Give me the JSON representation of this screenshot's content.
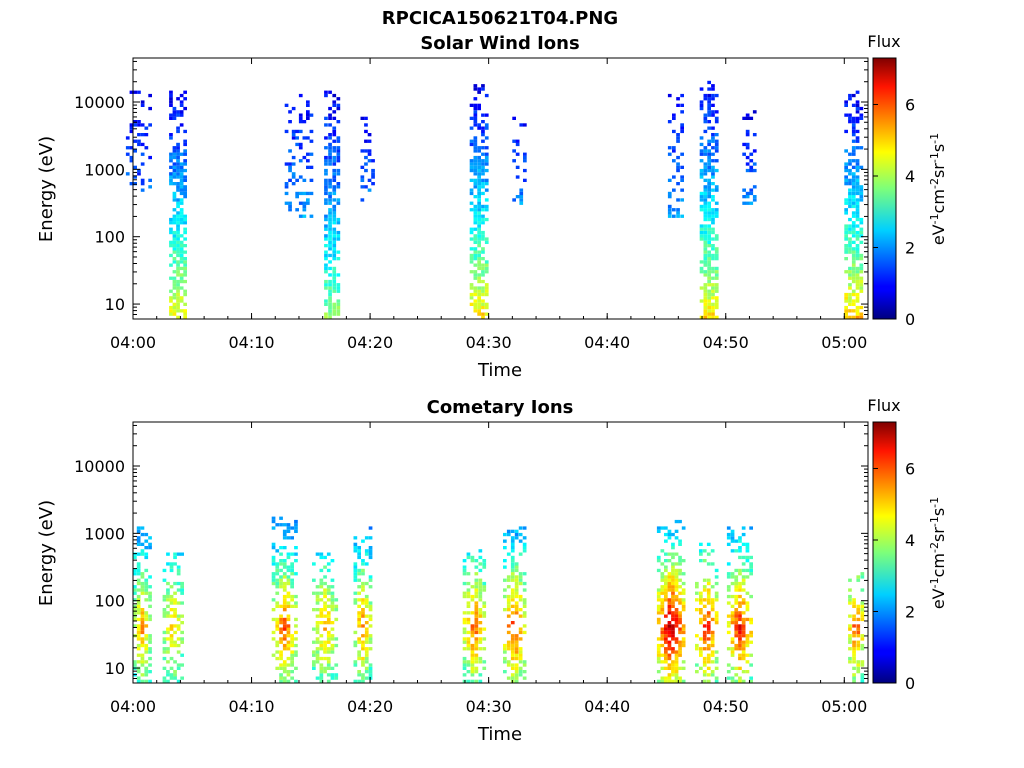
{
  "figure_title": "RPCICA150621T04.PNG",
  "chart_data": [
    {
      "type": "heatmap",
      "title": "Solar Wind Ions",
      "xlabel": "Time",
      "ylabel": "Energy (eV)",
      "yscale": "log",
      "ylim": [
        6,
        45000
      ],
      "xlim_minutes": [
        0,
        62
      ],
      "x_ticks": [
        "04:00",
        "04:10",
        "04:20",
        "04:30",
        "04:40",
        "04:50",
        "05:00"
      ],
      "x_tick_minutes": [
        0,
        10,
        20,
        30,
        40,
        50,
        60
      ],
      "y_ticks": [
        "10",
        "100",
        "1000",
        "10000"
      ],
      "y_tick_values": [
        10,
        100,
        1000,
        10000
      ],
      "colorbar": {
        "label": "Flux",
        "unit": "eV-1cm-2sr-1s-1",
        "range": [
          0,
          7.3
        ],
        "ticks": [
          "0",
          "2",
          "4",
          "6"
        ],
        "tick_values": [
          0,
          2,
          4,
          6
        ]
      },
      "bursts": [
        {
          "t": 0.5,
          "w": 2.2,
          "emin": 400,
          "emax": 14000,
          "fmin": 0.8,
          "fmax": 1.8,
          "dens": 0.35
        },
        {
          "t": 3.8,
          "w": 1.5,
          "emin": 6,
          "emax": 15000,
          "fmin": 0.8,
          "fmax": 4.8,
          "dens": 0.85
        },
        {
          "t": 14.0,
          "w": 2.4,
          "emin": 200,
          "emax": 14000,
          "fmin": 0.9,
          "fmax": 2.2,
          "dens": 0.35
        },
        {
          "t": 16.8,
          "w": 1.4,
          "emin": 6,
          "emax": 15000,
          "fmin": 0.8,
          "fmax": 4.0,
          "dens": 0.85
        },
        {
          "t": 19.8,
          "w": 1.2,
          "emin": 300,
          "emax": 6000,
          "fmin": 0.8,
          "fmax": 2.0,
          "dens": 0.35
        },
        {
          "t": 29.2,
          "w": 1.6,
          "emin": 6,
          "emax": 18000,
          "fmin": 0.8,
          "fmax": 5.0,
          "dens": 0.85
        },
        {
          "t": 32.6,
          "w": 1.2,
          "emin": 300,
          "emax": 6000,
          "fmin": 0.8,
          "fmax": 2.0,
          "dens": 0.35
        },
        {
          "t": 45.8,
          "w": 1.4,
          "emin": 200,
          "emax": 14000,
          "fmin": 0.8,
          "fmax": 2.2,
          "dens": 0.45
        },
        {
          "t": 48.6,
          "w": 1.6,
          "emin": 6,
          "emax": 20000,
          "fmin": 0.8,
          "fmax": 5.0,
          "dens": 0.85
        },
        {
          "t": 52.0,
          "w": 1.2,
          "emin": 300,
          "emax": 8000,
          "fmin": 0.8,
          "fmax": 2.0,
          "dens": 0.35
        },
        {
          "t": 60.8,
          "w": 1.6,
          "emin": 6,
          "emax": 15000,
          "fmin": 0.8,
          "fmax": 5.2,
          "dens": 0.85
        }
      ]
    },
    {
      "type": "heatmap",
      "title": "Cometary Ions",
      "xlabel": "Time",
      "ylabel": "Energy (eV)",
      "yscale": "log",
      "ylim": [
        6,
        45000
      ],
      "xlim_minutes": [
        0,
        62
      ],
      "x_ticks": [
        "04:00",
        "04:10",
        "04:20",
        "04:30",
        "04:40",
        "04:50",
        "05:00"
      ],
      "x_tick_minutes": [
        0,
        10,
        20,
        30,
        40,
        50,
        60
      ],
      "y_ticks": [
        "10",
        "100",
        "1000",
        "10000"
      ],
      "y_tick_values": [
        10,
        100,
        1000,
        10000
      ],
      "colorbar": {
        "label": "Flux",
        "unit": "eV-1cm-2sr-1s-1",
        "range": [
          0,
          7.3
        ],
        "ticks": [
          "0",
          "2",
          "4",
          "6"
        ],
        "tick_values": [
          0,
          2,
          4,
          6
        ]
      },
      "bursts": [
        {
          "t": 0.8,
          "w": 1.6,
          "emin": 6,
          "emax": 1200,
          "fmin": 2.0,
          "fmax": 5.4,
          "dens": 0.7
        },
        {
          "t": 3.4,
          "w": 1.8,
          "emin": 6,
          "emax": 500,
          "fmin": 2.2,
          "fmax": 5.0,
          "dens": 0.6
        },
        {
          "t": 12.8,
          "w": 2.2,
          "emin": 6,
          "emax": 1800,
          "fmin": 2.0,
          "fmax": 6.0,
          "dens": 0.7
        },
        {
          "t": 16.2,
          "w": 2.2,
          "emin": 6,
          "emax": 500,
          "fmin": 2.2,
          "fmax": 5.2,
          "dens": 0.6
        },
        {
          "t": 19.4,
          "w": 1.6,
          "emin": 6,
          "emax": 1200,
          "fmin": 2.0,
          "fmax": 5.6,
          "dens": 0.65
        },
        {
          "t": 28.8,
          "w": 2.0,
          "emin": 6,
          "emax": 600,
          "fmin": 2.2,
          "fmax": 5.8,
          "dens": 0.7
        },
        {
          "t": 32.2,
          "w": 2.0,
          "emin": 6,
          "emax": 1200,
          "fmin": 2.2,
          "fmax": 6.2,
          "dens": 0.7
        },
        {
          "t": 45.4,
          "w": 2.4,
          "emin": 6,
          "emax": 1600,
          "fmin": 2.4,
          "fmax": 7.2,
          "dens": 0.8
        },
        {
          "t": 48.4,
          "w": 2.0,
          "emin": 6,
          "emax": 700,
          "fmin": 2.2,
          "fmax": 6.4,
          "dens": 0.7
        },
        {
          "t": 51.2,
          "w": 2.2,
          "emin": 6,
          "emax": 1200,
          "fmin": 2.2,
          "fmax": 6.4,
          "dens": 0.7
        },
        {
          "t": 61.0,
          "w": 1.4,
          "emin": 6,
          "emax": 300,
          "fmin": 2.2,
          "fmax": 6.0,
          "dens": 0.7
        }
      ]
    }
  ]
}
